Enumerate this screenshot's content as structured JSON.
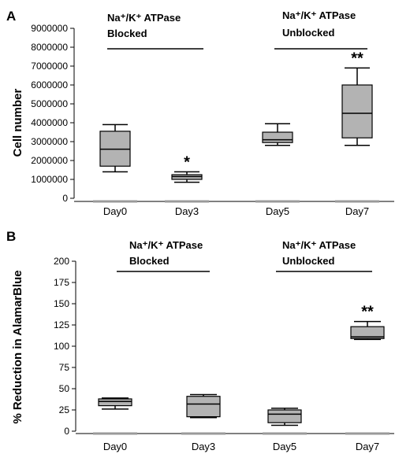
{
  "colors": {
    "box_fill": "#b3b3b3",
    "box_stroke": "#000000",
    "axis": "#000000",
    "baseline_marker": "#9a9a9a"
  },
  "chart_data": [
    {
      "type": "box",
      "panel_label": "A",
      "ylabel": "Cell number",
      "categories": [
        "Day0",
        "Day3",
        "Day5",
        "Day7"
      ],
      "ylim": [
        0,
        9000000
      ],
      "yticks": [
        0,
        1000000,
        2000000,
        3000000,
        4000000,
        5000000,
        6000000,
        7000000,
        8000000,
        9000000
      ],
      "ytick_labels": [
        "0",
        "1000000",
        "2000000",
        "3000000",
        "4000000",
        "5000000",
        "6000000",
        "7000000",
        "8000000",
        "9000000"
      ],
      "boxes": [
        {
          "category": "Day0",
          "min": 1400000,
          "q1": 1700000,
          "median": 2600000,
          "q3": 3550000,
          "max": 3900000,
          "sig": ""
        },
        {
          "category": "Day3",
          "min": 850000,
          "q1": 1000000,
          "median": 1150000,
          "q3": 1250000,
          "max": 1400000,
          "sig": "*"
        },
        {
          "category": "Day5",
          "min": 2800000,
          "q1": 2950000,
          "median": 3100000,
          "q3": 3500000,
          "max": 3950000,
          "sig": ""
        },
        {
          "category": "Day7",
          "min": 2800000,
          "q1": 3200000,
          "median": 4500000,
          "q3": 6000000,
          "max": 6900000,
          "sig": "**"
        }
      ],
      "annotations": [
        {
          "line1": "Na⁺/K⁺ ATPase",
          "line2": "Blocked",
          "span": [
            "Day0",
            "Day3"
          ]
        },
        {
          "line1": "Na⁺/K⁺ ATPase",
          "line2": "Unblocked",
          "span": [
            "Day5",
            "Day7"
          ]
        }
      ]
    },
    {
      "type": "box",
      "panel_label": "B",
      "ylabel": "% Reduction in AlamarBlue",
      "categories": [
        "Day0",
        "Day3",
        "Day5",
        "Day7"
      ],
      "ylim": [
        0,
        200
      ],
      "yticks": [
        0,
        25,
        50,
        75,
        100,
        125,
        150,
        175,
        200
      ],
      "ytick_labels": [
        "0",
        "25",
        "50",
        "75",
        "100",
        "125",
        "150",
        "175",
        "200"
      ],
      "boxes": [
        {
          "category": "Day0",
          "min": 26,
          "q1": 30,
          "median": 35,
          "q3": 38,
          "max": 39,
          "sig": ""
        },
        {
          "category": "Day3",
          "min": 16,
          "q1": 17,
          "median": 32,
          "q3": 41,
          "max": 43,
          "sig": ""
        },
        {
          "category": "Day5",
          "min": 7,
          "q1": 10,
          "median": 20,
          "q3": 25,
          "max": 27,
          "sig": ""
        },
        {
          "category": "Day7",
          "min": 108,
          "q1": 109,
          "median": 111,
          "q3": 123,
          "max": 129,
          "sig": "**"
        }
      ],
      "annotations": [
        {
          "line1": "Na⁺/K⁺ ATPase",
          "line2": "Blocked",
          "span": [
            "Day0",
            "Day3"
          ]
        },
        {
          "line1": "Na⁺/K⁺ ATPase",
          "line2": "Unblocked",
          "span": [
            "Day5",
            "Day7"
          ]
        }
      ]
    }
  ]
}
